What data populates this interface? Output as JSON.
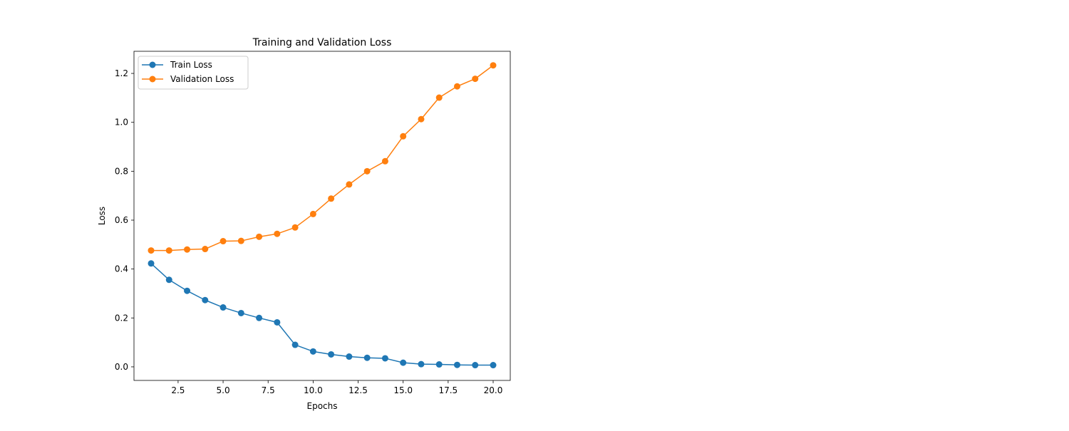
{
  "chart_data": {
    "type": "line",
    "title": "Training and Validation Loss",
    "xlabel": "Epochs",
    "ylabel": "Loss",
    "xlim": [
      0.05,
      20.95
    ],
    "ylim": [
      -0.0555,
      1.2905
    ],
    "xticks": [
      2.5,
      5.0,
      7.5,
      10.0,
      12.5,
      15.0,
      17.5,
      20.0
    ],
    "xtick_labels": [
      "2.5",
      "5.0",
      "7.5",
      "10.0",
      "12.5",
      "15.0",
      "17.5",
      "20.0"
    ],
    "yticks": [
      0.0,
      0.2,
      0.4,
      0.6,
      0.8,
      1.0,
      1.2
    ],
    "ytick_labels": [
      "0.0",
      "0.2",
      "0.4",
      "0.6",
      "0.8",
      "1.0",
      "1.2"
    ],
    "grid": false,
    "legend_position": "upper left",
    "x": [
      1,
      2,
      3,
      4,
      5,
      6,
      7,
      8,
      9,
      10,
      11,
      12,
      13,
      14,
      15,
      16,
      17,
      18,
      19,
      20
    ],
    "series": [
      {
        "name": "Train Loss",
        "color": "#1f77b4",
        "marker": "circle",
        "values": [
          0.423,
          0.356,
          0.311,
          0.273,
          0.243,
          0.22,
          0.2,
          0.182,
          0.09,
          0.063,
          0.051,
          0.042,
          0.037,
          0.035,
          0.017,
          0.011,
          0.01,
          0.008,
          0.007,
          0.007
        ]
      },
      {
        "name": "Validation Loss",
        "color": "#ff7f0e",
        "marker": "circle",
        "values": [
          0.476,
          0.476,
          0.48,
          0.482,
          0.514,
          0.515,
          0.532,
          0.544,
          0.57,
          0.625,
          0.688,
          0.746,
          0.8,
          0.841,
          0.943,
          1.013,
          1.101,
          1.147,
          1.178,
          1.233
        ]
      }
    ]
  }
}
